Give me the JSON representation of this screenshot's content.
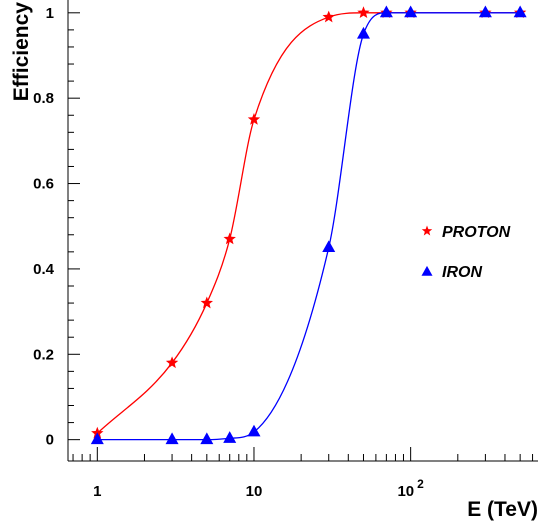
{
  "chart_data": {
    "type": "scatter",
    "xlabel": "E (TeV)",
    "ylabel": "Efficiency",
    "x_scale": "log",
    "xlim": [
      0.65,
      650
    ],
    "ylim": [
      -0.05,
      1.03
    ],
    "x_ticks": [
      {
        "value": 1,
        "label": "1"
      },
      {
        "value": 10,
        "label": "10"
      },
      {
        "value": 100,
        "label": "10",
        "exp": "2"
      }
    ],
    "y_ticks": [
      {
        "value": 0,
        "label": "0"
      },
      {
        "value": 0.2,
        "label": "0.2"
      },
      {
        "value": 0.4,
        "label": "0.4"
      },
      {
        "value": 0.6,
        "label": "0.6"
      },
      {
        "value": 0.8,
        "label": "0.8"
      },
      {
        "value": 1,
        "label": "1"
      }
    ],
    "legend_position": "right",
    "series": [
      {
        "name": "PROTON",
        "marker": "star",
        "color": "#ff0000",
        "x": [
          1,
          3,
          5,
          7,
          10,
          30,
          50,
          70,
          100,
          300,
          500
        ],
        "y": [
          0.015,
          0.18,
          0.32,
          0.47,
          0.75,
          0.99,
          1.0,
          1.0,
          1.0,
          1.0,
          1.0
        ]
      },
      {
        "name": "IRON",
        "marker": "triangle",
        "color": "#0000ff",
        "x": [
          1,
          3,
          5,
          7,
          10,
          30,
          50,
          70,
          100,
          300,
          500
        ],
        "y": [
          0.0,
          0.0,
          0.0,
          0.003,
          0.018,
          0.45,
          0.95,
          1.0,
          1.0,
          1.0,
          1.0
        ]
      }
    ]
  }
}
